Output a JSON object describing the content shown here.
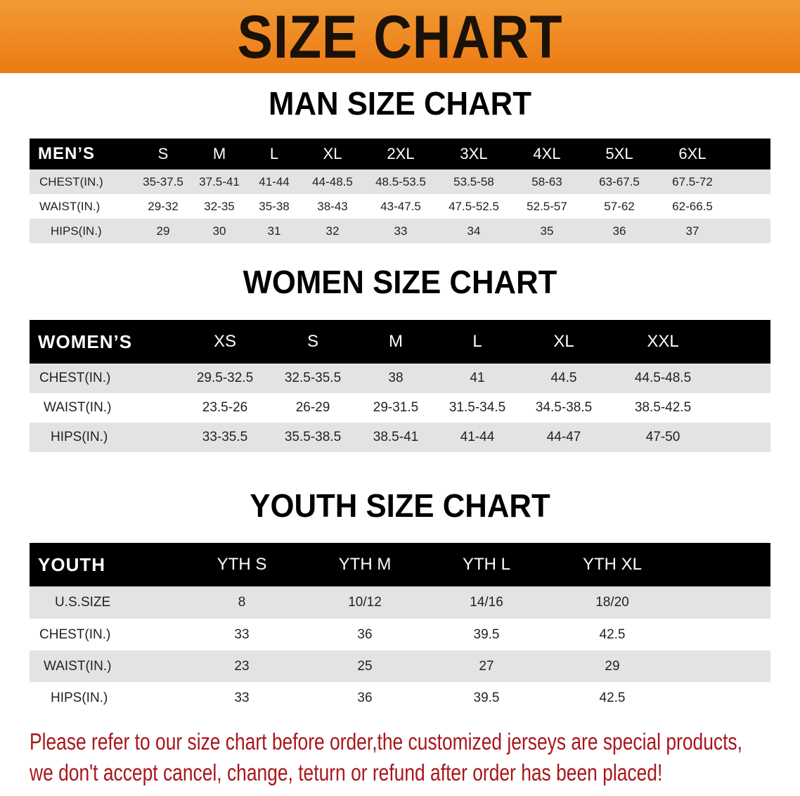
{
  "banner": {
    "title": "SIZE CHART"
  },
  "men": {
    "title": "MAN SIZE CHART",
    "header": [
      "MEN’S",
      "S",
      "M",
      "L",
      "XL",
      "2XL",
      "3XL",
      "4XL",
      "5XL",
      "6XL"
    ],
    "rows": [
      [
        "CHEST(IN.)",
        "35-37.5",
        "37.5-41",
        "41-44",
        "44-48.5",
        "48.5-53.5",
        "53.5-58",
        "58-63",
        "63-67.5",
        "67.5-72"
      ],
      [
        "WAIST(IN.)",
        "29-32",
        "32-35",
        "35-38",
        "38-43",
        "43-47.5",
        "47.5-52.5",
        "52.5-57",
        "57-62",
        "62-66.5"
      ],
      [
        "HIPS(IN.)",
        "29",
        "30",
        "31",
        "32",
        "33",
        "34",
        "35",
        "36",
        "37"
      ]
    ]
  },
  "women": {
    "title": "WOMEN SIZE CHART",
    "header": [
      "WOMEN’S",
      "XS",
      "S",
      "M",
      "L",
      "XL",
      "XXL"
    ],
    "rows": [
      [
        "CHEST(IN.)",
        "29.5-32.5",
        "32.5-35.5",
        "38",
        "41",
        "44.5",
        "44.5-48.5"
      ],
      [
        "WAIST(IN.)",
        "23.5-26",
        "26-29",
        "29-31.5",
        "31.5-34.5",
        "34.5-38.5",
        "38.5-42.5"
      ],
      [
        "HIPS(IN.)",
        "33-35.5",
        "35.5-38.5",
        "38.5-41",
        "41-44",
        "44-47",
        "47-50"
      ]
    ]
  },
  "youth": {
    "title": "YOUTH SIZE CHART",
    "header": [
      "YOUTH",
      "YTH S",
      "YTH M",
      "YTH L",
      "YTH XL"
    ],
    "rows": [
      [
        "U.S.SIZE",
        "8",
        "10/12",
        "14/16",
        "18/20"
      ],
      [
        "CHEST(IN.)",
        "33",
        "36",
        "39.5",
        "42.5"
      ],
      [
        "WAIST(IN.)",
        "23",
        "25",
        "27",
        "29"
      ],
      [
        "HIPS(IN.)",
        "33",
        "36",
        "39.5",
        "42.5"
      ]
    ]
  },
  "footer": {
    "line1": "Please refer to our size chart before order,the customized jerseys are special products,",
    "line2": "we don't accept cancel, change, teturn or refund after order has been placed!"
  },
  "colors": {
    "banner": "#ec7a12",
    "header_row": "#000000",
    "stripe": "#e3e3e3",
    "notice": "#a8161a"
  }
}
